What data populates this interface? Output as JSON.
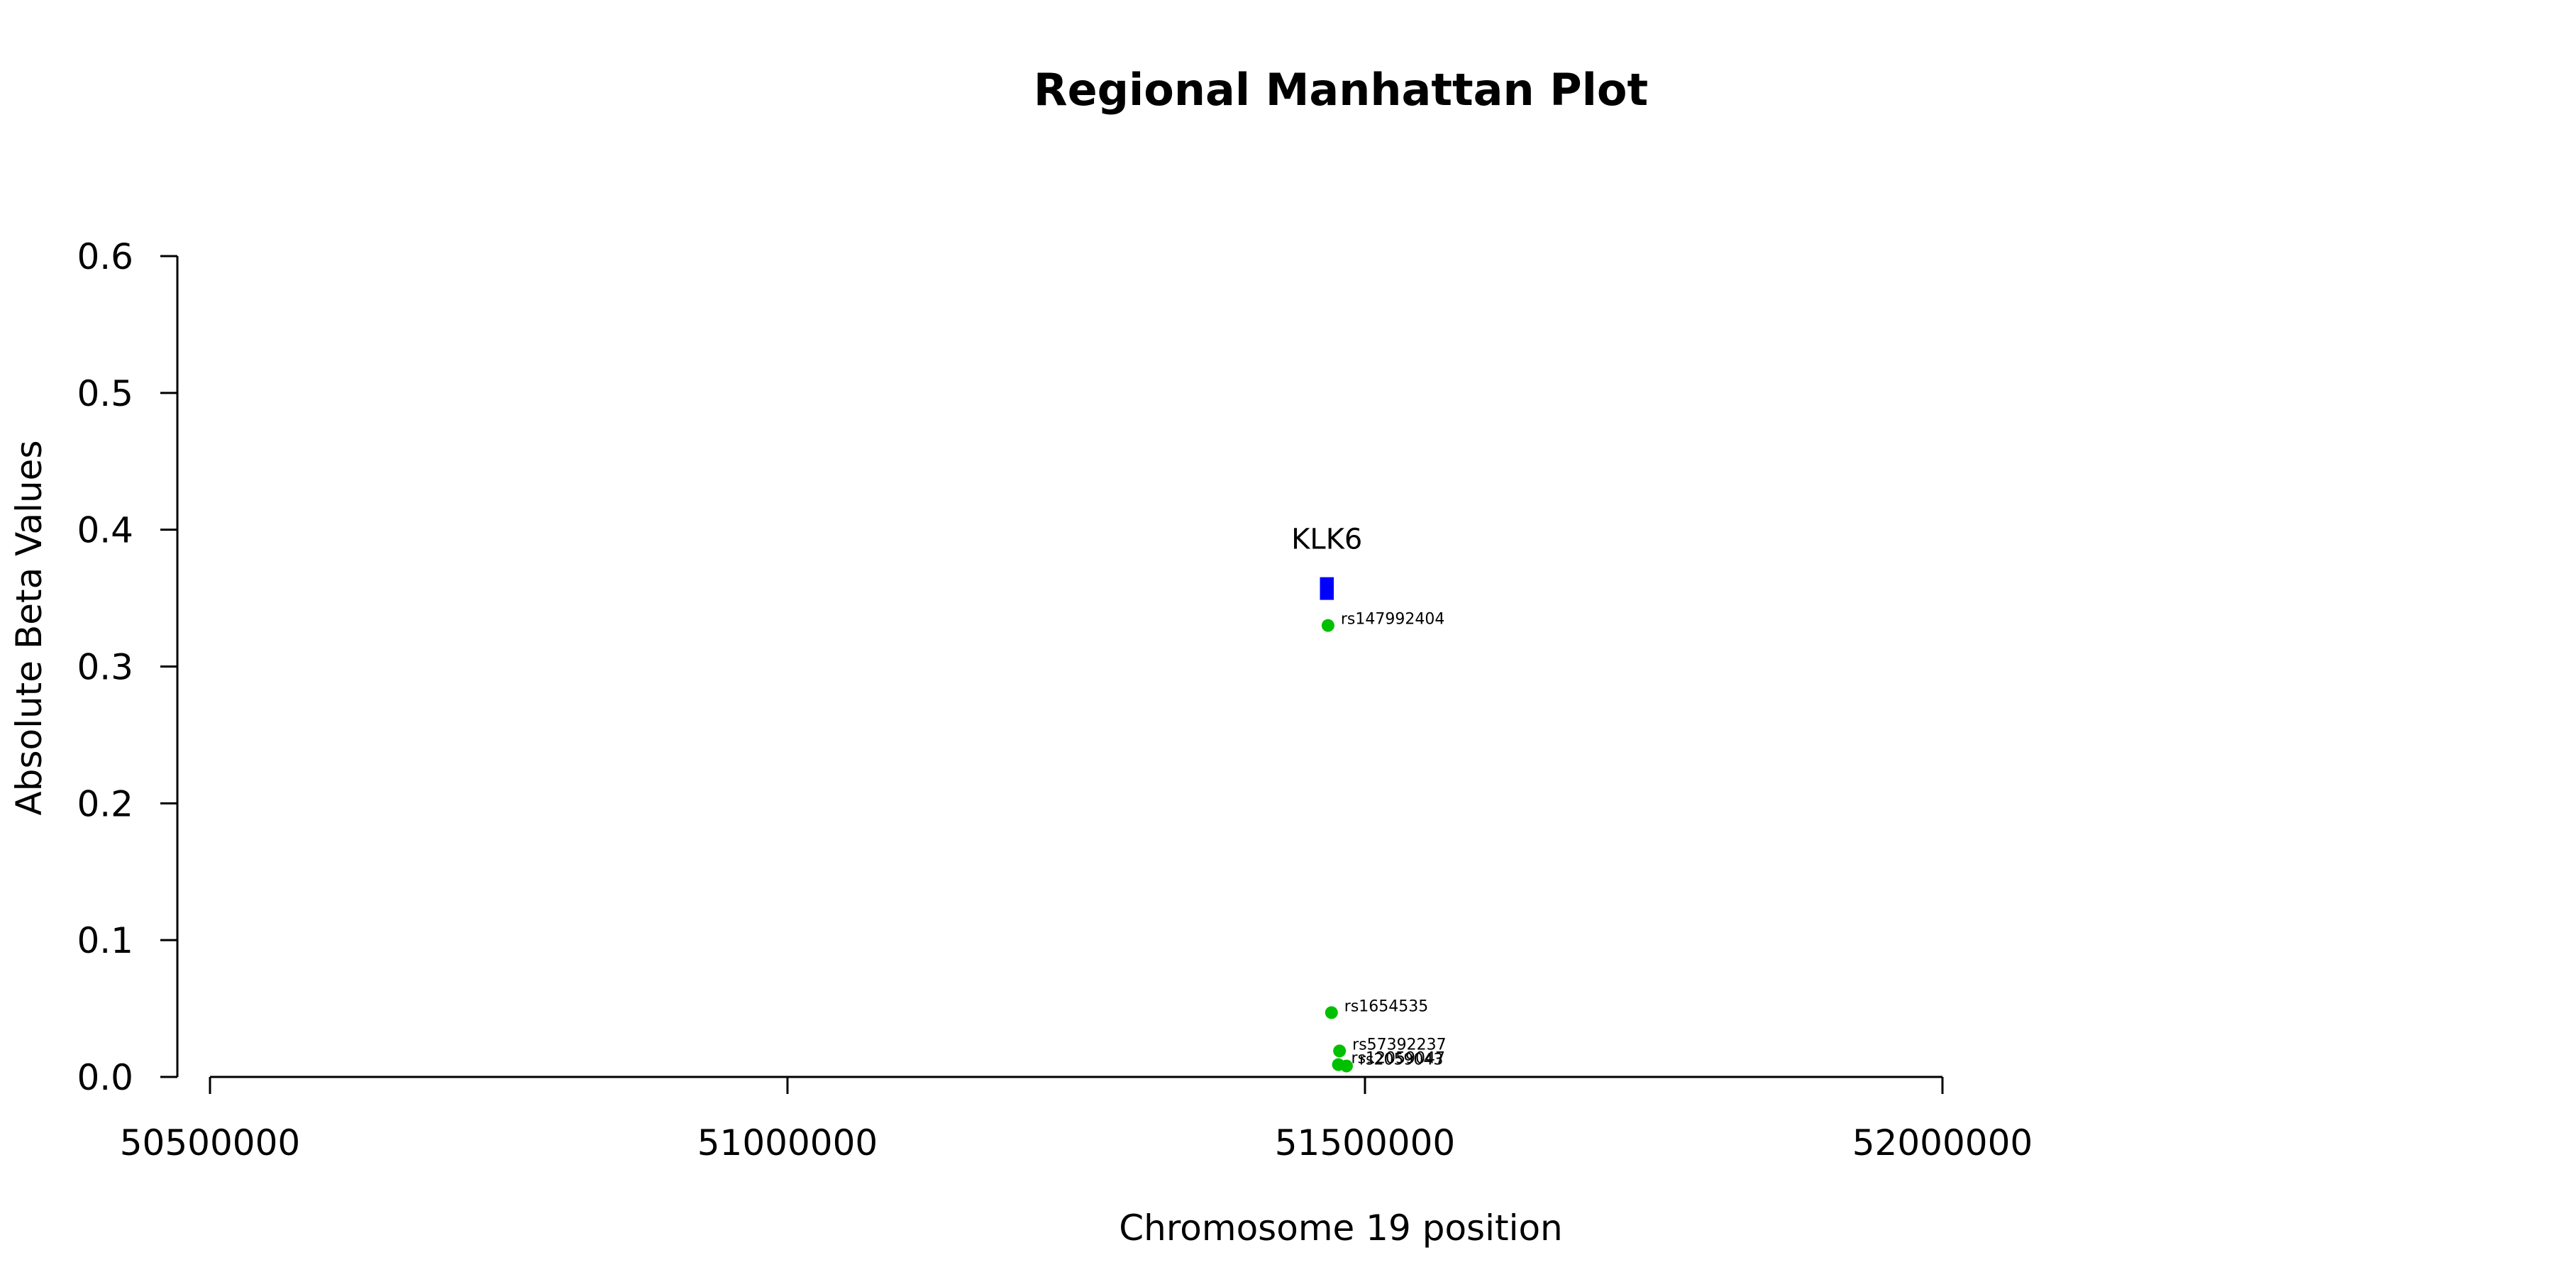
{
  "chart_data": {
    "type": "scatter",
    "title": "Regional Manhattan Plot",
    "xlabel": "Chromosome 19 position",
    "ylabel": "Absolute Beta Values",
    "xlim": [
      50500000,
      52000000
    ],
    "ylim": [
      0,
      0.6
    ],
    "x_ticks": [
      "50500000",
      "51000000",
      "51500000",
      "52000000"
    ],
    "y_ticks": [
      "0.0",
      "0.1",
      "0.2",
      "0.3",
      "0.4",
      "0.5",
      "0.6"
    ],
    "grid": false,
    "gene": {
      "label": "KLK6",
      "x_start": 51461000,
      "x_end": 51473000,
      "y": 0.357,
      "color": "#0000ff"
    },
    "point_color": "#00c000",
    "points": [
      {
        "label": "rs147992404",
        "x": 51468000,
        "y": 0.33
      },
      {
        "label": "rs1654535",
        "x": 51471000,
        "y": 0.047
      },
      {
        "label": "rs57392237",
        "x": 51478000,
        "y": 0.019
      },
      {
        "label": "rs12059047",
        "x": 51477000,
        "y": 0.009
      },
      {
        "label": "rs2059043",
        "x": 51484000,
        "y": 0.008
      }
    ]
  }
}
